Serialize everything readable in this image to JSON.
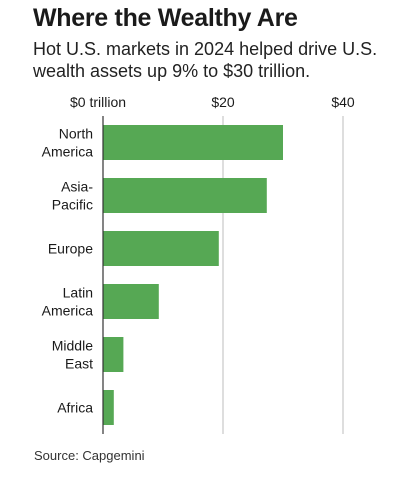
{
  "title": "Where the Wealthy Are",
  "subtitle": "Hot U.S. markets in 2024 helped drive U.S. wealth assets up 9% to $30 trillion.",
  "source": "Source: Capgemini",
  "colors": {
    "bar": "#56a854",
    "grid": "#bdbdbd",
    "axis": "#333333",
    "text": "#1a1a1a"
  },
  "chart_data": {
    "type": "bar",
    "orientation": "horizontal",
    "categories": [
      [
        "North",
        "America"
      ],
      [
        "Asia-",
        "Pacific"
      ],
      [
        "Europe"
      ],
      [
        "Latin",
        "America"
      ],
      [
        "Middle",
        "East"
      ],
      [
        "Africa"
      ]
    ],
    "values": [
      30,
      27.3,
      19.3,
      9.3,
      3.4,
      1.8
    ],
    "xlim": [
      0,
      40
    ],
    "ticks": [
      0,
      20,
      40
    ],
    "tick_labels": [
      "$0 trillion",
      "$20",
      "$40"
    ],
    "tick_position": "top",
    "grid": true,
    "title": "Where the Wealthy Are",
    "xlabel": "",
    "ylabel": ""
  }
}
